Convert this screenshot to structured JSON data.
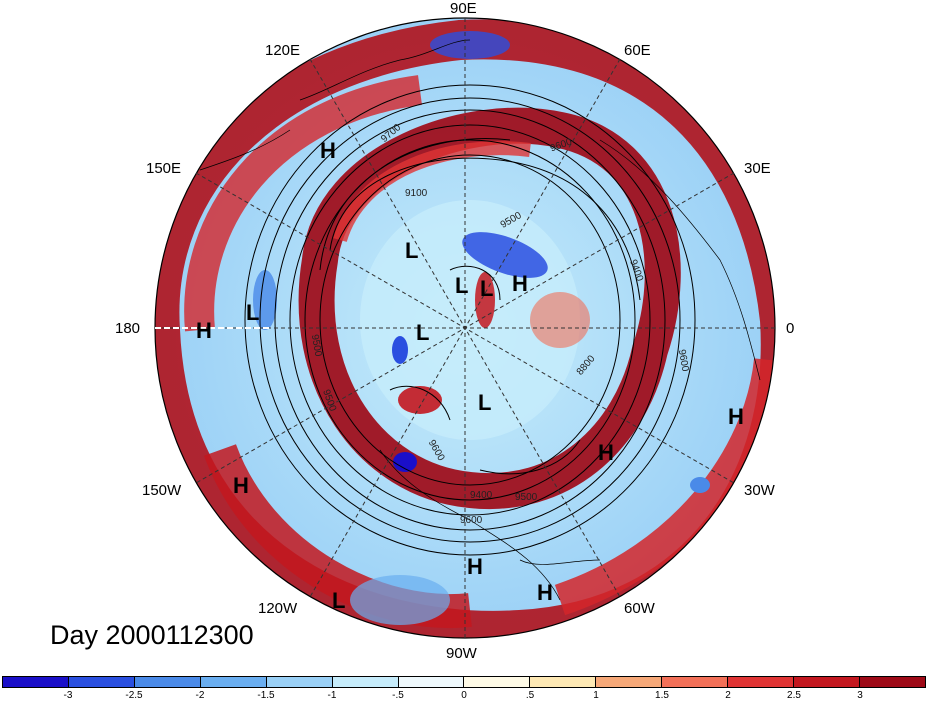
{
  "title": "Day 2000112300",
  "lon_labels": {
    "top": "90E",
    "upper_left": "120E",
    "upper_right": "60E",
    "left_upper": "150E",
    "right_upper": "30E",
    "left": "180",
    "right": "0",
    "left_lower": "150W",
    "right_lower": "30W",
    "lower_left": "120W",
    "lower_right": "60W",
    "bottom": "90W"
  },
  "pressure_centers": [
    {
      "type": "H",
      "label": "H"
    },
    {
      "type": "L",
      "label": "L"
    },
    {
      "type": "L",
      "label": "L"
    },
    {
      "type": "L",
      "label": "L"
    },
    {
      "type": "H",
      "label": "H"
    },
    {
      "type": "L",
      "label": "L"
    },
    {
      "type": "H",
      "label": "H"
    },
    {
      "type": "L",
      "label": "L"
    },
    {
      "type": "L",
      "label": "L"
    },
    {
      "type": "H",
      "label": "H"
    },
    {
      "type": "H",
      "label": "H"
    },
    {
      "type": "H",
      "label": "H"
    },
    {
      "type": "H",
      "label": "H"
    },
    {
      "type": "H",
      "label": "H"
    },
    {
      "type": "L",
      "label": "L"
    }
  ],
  "contour_labels": [
    "9600",
    "9700",
    "9100",
    "9500",
    "9400",
    "8800",
    "9600",
    "9500",
    "9400",
    "9500",
    "9600",
    "9600",
    "9500"
  ],
  "colorbar": {
    "colors": [
      "#1a0fc9",
      "#2a4fe0",
      "#4a8ae8",
      "#6aaef0",
      "#9ad0f6",
      "#c6ecfb",
      "#eef8fc",
      "#fefae6",
      "#fde8b4",
      "#f6a878",
      "#f27058",
      "#e03434",
      "#c3171f",
      "#9e0a17"
    ],
    "ticks": [
      "-3",
      "-2.5",
      "-2",
      "-1.5",
      "-1",
      "-.5",
      "0",
      ".5",
      "1",
      "1.5",
      "2",
      "2.5",
      "3"
    ]
  }
}
